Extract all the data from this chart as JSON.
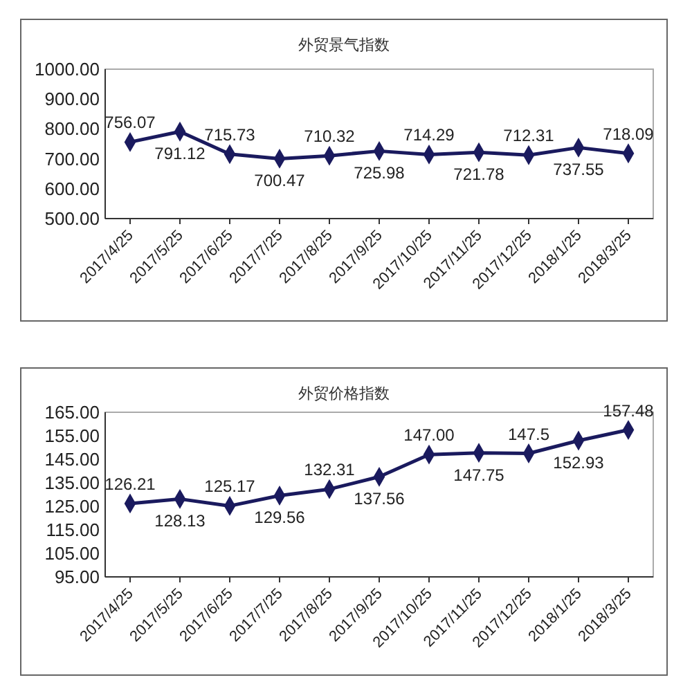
{
  "chart_data": [
    {
      "type": "line",
      "title": "外贸景气指数",
      "categories": [
        "2017/4/25",
        "2017/5/25",
        "2017/6/25",
        "2017/7/25",
        "2017/8/25",
        "2017/9/25",
        "2017/10/25",
        "2017/11/25",
        "2017/12/25",
        "2018/1/25",
        "2018/3/25"
      ],
      "series": [
        {
          "color": "#1a1a5e",
          "values": [
            756.07,
            791.12,
            715.73,
            700.47,
            710.32,
            725.98,
            714.29,
            721.78,
            712.31,
            737.55,
            718.09
          ]
        }
      ],
      "ylim": [
        500,
        1000
      ],
      "yticks": [
        {
          "value": 500,
          "label": "500.00"
        },
        {
          "value": 600,
          "label": "600.00"
        },
        {
          "value": 700,
          "label": "700.00"
        },
        {
          "value": 800,
          "label": "800.00"
        },
        {
          "value": 900,
          "label": "900.00"
        },
        {
          "value": 1000,
          "label": "1000.00"
        }
      ],
      "data_labels": true,
      "marker": "diamond",
      "grid": false
    },
    {
      "type": "line",
      "title": "外贸价格指数",
      "categories": [
        "2017/4/25",
        "2017/5/25",
        "2017/6/25",
        "2017/7/25",
        "2017/8/25",
        "2017/9/25",
        "2017/10/25",
        "2017/11/25",
        "2017/12/25",
        "2018/1/25",
        "2018/3/25"
      ],
      "series": [
        {
          "color": "#1a1a5e",
          "values": [
            126.21,
            128.13,
            125.17,
            129.56,
            132.31,
            137.56,
            147.0,
            147.75,
            147.5,
            152.93,
            157.48
          ],
          "value_labels": [
            "126.21",
            "128.13",
            "125.17",
            "129.56",
            "132.31",
            "137.56",
            "147.00",
            "147.75",
            "147.5",
            "152.93",
            "157.48"
          ]
        }
      ],
      "ylim": [
        95,
        165
      ],
      "yticks": [
        {
          "value": 95,
          "label": "95.00"
        },
        {
          "value": 105,
          "label": "105.00"
        },
        {
          "value": 115,
          "label": "115.00"
        },
        {
          "value": 125,
          "label": "125.00"
        },
        {
          "value": 135,
          "label": "135.00"
        },
        {
          "value": 145,
          "label": "145.00"
        },
        {
          "value": 155,
          "label": "155.00"
        },
        {
          "value": 165,
          "label": "165.00"
        }
      ],
      "marker": "diamond",
      "grid": false
    }
  ]
}
